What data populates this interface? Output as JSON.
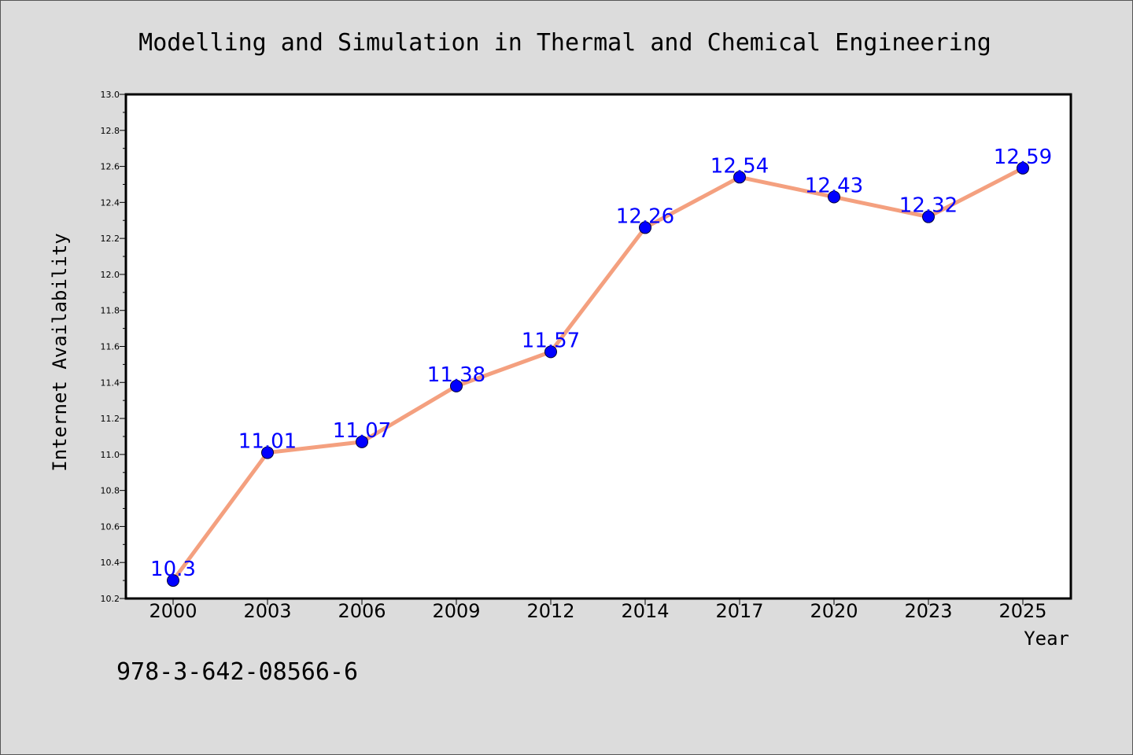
{
  "chart_data": {
    "type": "line",
    "title": "Modelling and Simulation in Thermal and Chemical Engineering",
    "xlabel": "Year",
    "ylabel": "Internet Availability",
    "categories": [
      "2000",
      "2003",
      "2006",
      "2009",
      "2012",
      "2014",
      "2017",
      "2020",
      "2023",
      "2025"
    ],
    "values": [
      10.3,
      11.01,
      11.07,
      11.38,
      11.57,
      12.26,
      12.54,
      12.43,
      12.32,
      12.59
    ],
    "data_labels": [
      "10.3",
      "11.01",
      "11.07",
      "11.38",
      "11.57",
      "12.26",
      "12.54",
      "12.43",
      "12.32",
      "12.59"
    ],
    "ylim": [
      10.2,
      13.0
    ],
    "yticks": [
      "10.2",
      "10.4",
      "10.6",
      "10.8",
      "11.0",
      "11.2",
      "11.4",
      "11.6",
      "11.8",
      "12.0",
      "12.2",
      "12.4",
      "12.6",
      "12.8",
      "13.0"
    ],
    "grid": false,
    "line_color": "#f4a07f",
    "marker_color": "#0000ff",
    "label_color": "#0000ff",
    "plot_background": "#ffffff",
    "figure_background": "#dcdcdc"
  },
  "footer": {
    "isbn": "978-3-642-08566-6"
  }
}
